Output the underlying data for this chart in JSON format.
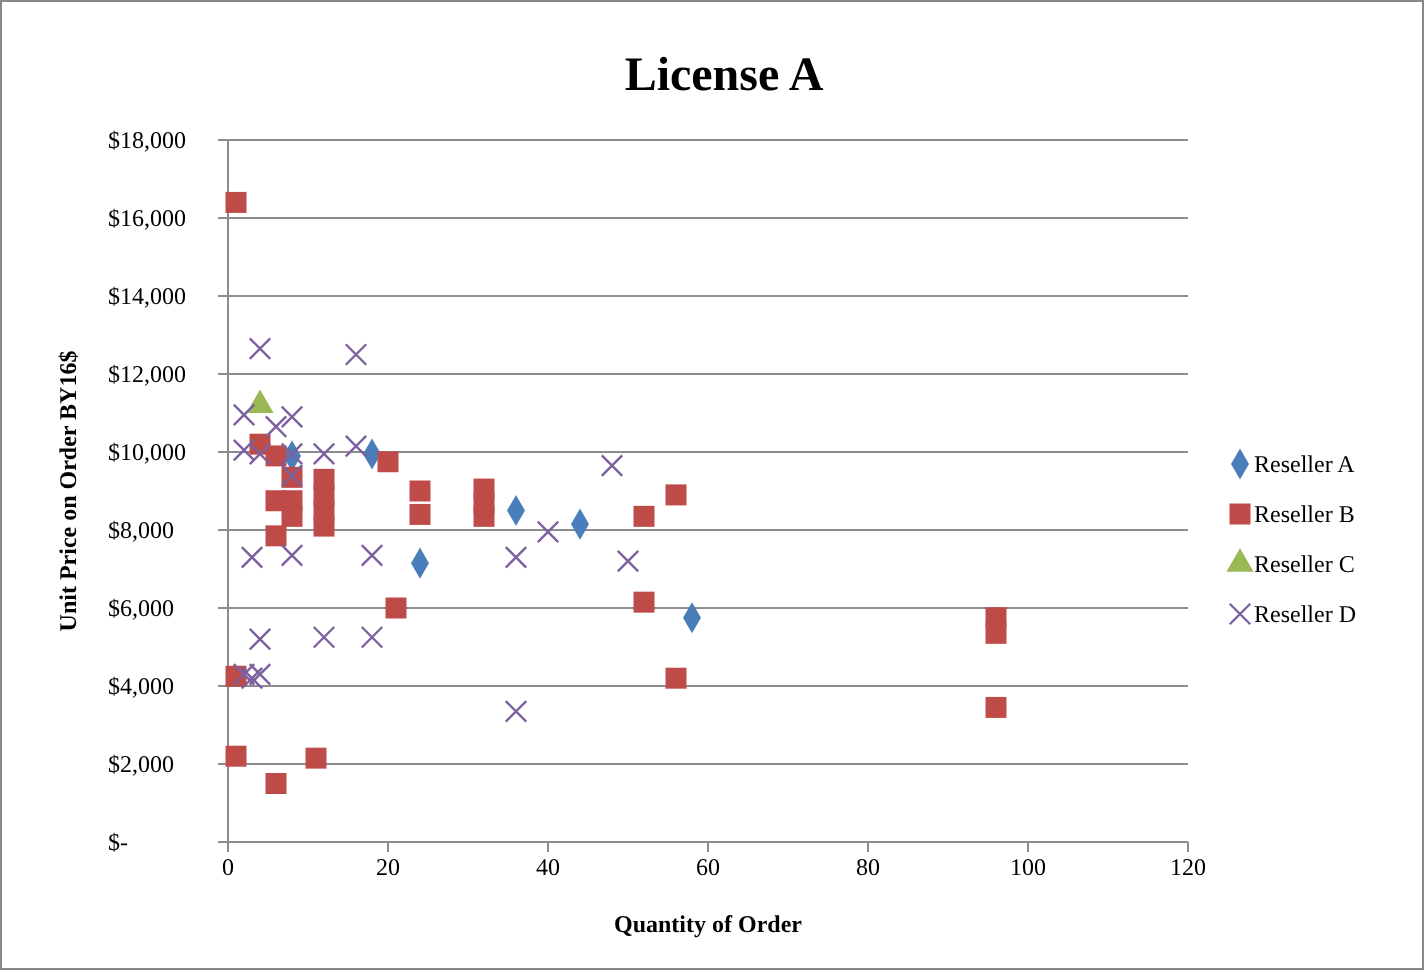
{
  "chart_data": {
    "type": "scatter",
    "title": "License A",
    "xlabel": "Quantity of Order",
    "ylabel": "Unit Price on Order BY16$",
    "xlim": [
      0,
      120
    ],
    "xticks": [
      0,
      20,
      40,
      60,
      80,
      100,
      120
    ],
    "ylim": [
      0,
      18000
    ],
    "yticks": [
      {
        "value": 0,
        "label": "$-"
      },
      {
        "value": 2000,
        "label": "$2,000"
      },
      {
        "value": 4000,
        "label": "$4,000"
      },
      {
        "value": 6000,
        "label": "$6,000"
      },
      {
        "value": 8000,
        "label": "$8,000"
      },
      {
        "value": 10000,
        "label": "$10,000"
      },
      {
        "value": 12000,
        "label": "$12,000"
      },
      {
        "value": 14000,
        "label": "$14,000"
      },
      {
        "value": 16000,
        "label": "$16,000"
      },
      {
        "value": 18000,
        "label": "$18,000"
      }
    ],
    "grid": "y",
    "legend": "right",
    "series": [
      {
        "name": "Reseller A",
        "color": "#4a7ebb",
        "marker": "diamond",
        "x": [
          8,
          18,
          24,
          36,
          44,
          58
        ],
        "values": [
          9900,
          9950,
          7150,
          8500,
          8150,
          5750
        ]
      },
      {
        "name": "Reseller B",
        "color": "#be4b48",
        "marker": "square",
        "x": [
          1,
          1,
          1,
          4,
          6,
          6,
          6,
          6,
          8,
          8,
          8,
          11,
          12,
          12,
          12,
          12,
          20,
          21,
          24,
          24,
          32,
          32,
          32,
          52,
          52,
          56,
          56,
          96,
          96,
          96
        ],
        "values": [
          16400,
          4250,
          2200,
          10200,
          9900,
          1500,
          8750,
          7850,
          9350,
          8750,
          8350,
          2150,
          9300,
          8900,
          8500,
          8100,
          9750,
          6000,
          9000,
          8400,
          9050,
          8700,
          8350,
          8350,
          6150,
          8900,
          4200,
          5750,
          5350,
          3450
        ]
      },
      {
        "name": "Reseller C",
        "color": "#98b954",
        "marker": "triangle",
        "x": [
          4
        ],
        "values": [
          11200
        ]
      },
      {
        "name": "Reseller D",
        "color": "#7d60a0",
        "marker": "cross",
        "x": [
          2,
          2,
          3,
          3,
          4,
          4,
          4,
          6,
          8,
          8,
          8,
          8,
          12,
          12,
          16,
          16,
          18,
          18,
          36,
          36,
          40,
          48,
          50,
          2,
          4
        ],
        "values": [
          10950,
          10050,
          7300,
          4200,
          12650,
          9950,
          5200,
          10650,
          10900,
          9950,
          9400,
          7350,
          9950,
          5250,
          12500,
          10150,
          7350,
          5250,
          7300,
          3350,
          7950,
          9650,
          7200,
          4300,
          4300
        ]
      }
    ]
  }
}
